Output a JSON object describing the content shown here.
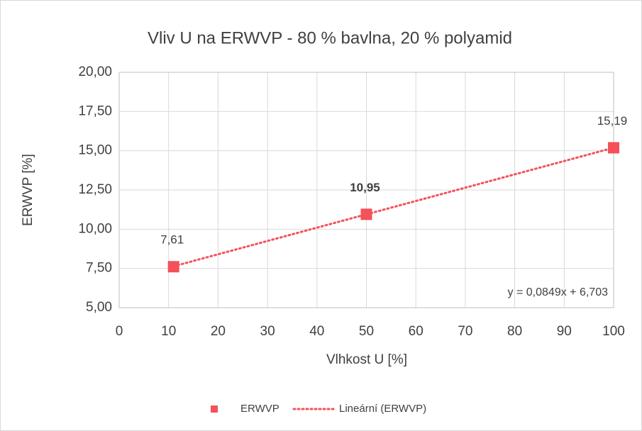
{
  "chart_data": {
    "type": "scatter",
    "title": "Vliv U na ERWVP - 80 % bavlna, 20 % polyamid",
    "x_label": "Vlhkost U [%]",
    "y_label": "ERWVP [%]",
    "series": [
      {
        "name": "ERWVP",
        "color": "#f4515a",
        "x": [
          11,
          50,
          100
        ],
        "values": [
          7.61,
          10.95,
          15.19
        ],
        "value_labels": [
          "7,61",
          "10,95",
          "15,19"
        ],
        "label_colors": [
          "#404040",
          "#f4515a",
          "#404040"
        ]
      }
    ],
    "trendline": {
      "name": "Lineární (ERWVP)",
      "equation": "y = 0,0849x + 6,703",
      "slope": 0.0849,
      "intercept": 6.703,
      "color": "#f4515a"
    },
    "xlim": [
      0,
      100
    ],
    "xticks": [
      0,
      10,
      20,
      30,
      40,
      50,
      60,
      70,
      80,
      90,
      100
    ],
    "ylim": [
      5,
      20
    ],
    "yticks": [
      {
        "value": 5,
        "label": "5,00"
      },
      {
        "value": 7.5,
        "label": "7,50"
      },
      {
        "value": 10,
        "label": "10,00"
      },
      {
        "value": 12.5,
        "label": "12,50"
      },
      {
        "value": 15,
        "label": "15,00"
      },
      {
        "value": 17.5,
        "label": "17,50"
      },
      {
        "value": 20,
        "label": "20,00"
      }
    ],
    "grid": true,
    "legend": "bottom"
  }
}
